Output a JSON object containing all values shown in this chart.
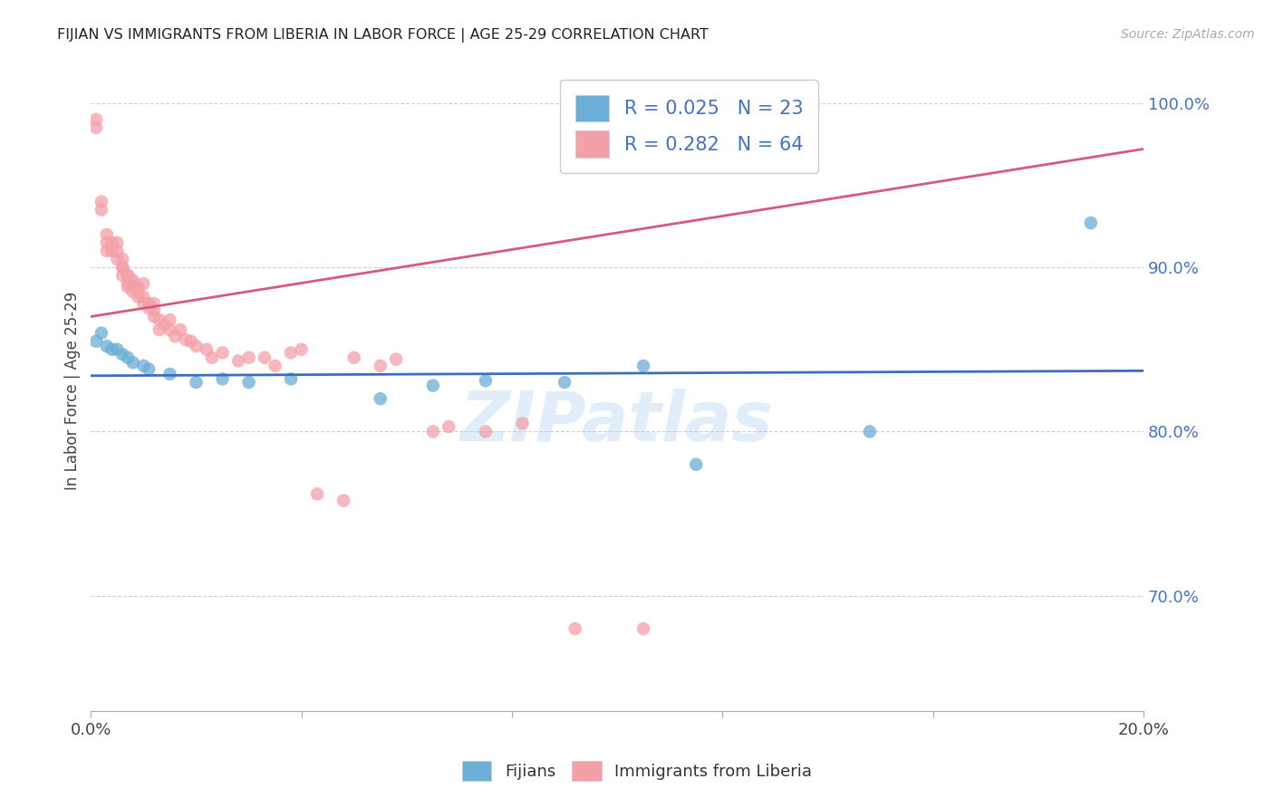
{
  "title": "FIJIAN VS IMMIGRANTS FROM LIBERIA IN LABOR FORCE | AGE 25-29 CORRELATION CHART",
  "source": "Source: ZipAtlas.com",
  "ylabel": "In Labor Force | Age 25-29",
  "xlim": [
    0.0,
    0.2
  ],
  "ylim": [
    0.63,
    1.02
  ],
  "fijian_color": "#6baed6",
  "liberia_color": "#f4a0a8",
  "blue_line_color": "#3a6fbb",
  "pink_line_color": "#d45b7a",
  "fijian_R": 0.025,
  "fijian_N": 23,
  "liberia_R": 0.282,
  "liberia_N": 64,
  "fijian_scatter_x": [
    0.001,
    0.002,
    0.003,
    0.004,
    0.005,
    0.006,
    0.007,
    0.008,
    0.01,
    0.011,
    0.015,
    0.02,
    0.025,
    0.03,
    0.038,
    0.055,
    0.065,
    0.075,
    0.09,
    0.105,
    0.115,
    0.148,
    0.19
  ],
  "fijian_scatter_y": [
    0.855,
    0.86,
    0.852,
    0.85,
    0.85,
    0.847,
    0.845,
    0.842,
    0.84,
    0.838,
    0.835,
    0.83,
    0.832,
    0.83,
    0.832,
    0.82,
    0.828,
    0.831,
    0.83,
    0.84,
    0.78,
    0.8,
    0.927
  ],
  "liberia_scatter_x": [
    0.001,
    0.001,
    0.002,
    0.002,
    0.003,
    0.003,
    0.003,
    0.004,
    0.004,
    0.005,
    0.005,
    0.005,
    0.006,
    0.006,
    0.006,
    0.006,
    0.007,
    0.007,
    0.007,
    0.007,
    0.008,
    0.008,
    0.008,
    0.009,
    0.009,
    0.009,
    0.01,
    0.01,
    0.01,
    0.011,
    0.011,
    0.012,
    0.012,
    0.012,
    0.013,
    0.013,
    0.014,
    0.015,
    0.015,
    0.016,
    0.017,
    0.018,
    0.019,
    0.02,
    0.022,
    0.023,
    0.025,
    0.028,
    0.03,
    0.033,
    0.035,
    0.038,
    0.04,
    0.043,
    0.048,
    0.05,
    0.055,
    0.058,
    0.065,
    0.068,
    0.075,
    0.082,
    0.092,
    0.105
  ],
  "liberia_scatter_y": [
    0.99,
    0.985,
    0.94,
    0.935,
    0.92,
    0.915,
    0.91,
    0.915,
    0.91,
    0.905,
    0.91,
    0.915,
    0.9,
    0.905,
    0.9,
    0.895,
    0.895,
    0.89,
    0.888,
    0.895,
    0.89,
    0.885,
    0.892,
    0.885,
    0.888,
    0.882,
    0.882,
    0.878,
    0.89,
    0.878,
    0.875,
    0.878,
    0.874,
    0.87,
    0.868,
    0.862,
    0.865,
    0.862,
    0.868,
    0.858,
    0.862,
    0.856,
    0.855,
    0.852,
    0.85,
    0.845,
    0.848,
    0.843,
    0.845,
    0.845,
    0.84,
    0.848,
    0.85,
    0.762,
    0.758,
    0.845,
    0.84,
    0.844,
    0.8,
    0.803,
    0.8,
    0.805,
    0.68,
    0.68
  ],
  "blue_line_x": [
    0.0,
    0.2
  ],
  "blue_line_y": [
    0.834,
    0.837
  ],
  "pink_line_x": [
    0.0,
    0.2
  ],
  "pink_line_y": [
    0.87,
    0.972
  ],
  "watermark": "ZIPatlas",
  "background_color": "#ffffff",
  "grid_color": "#d0d0d0"
}
